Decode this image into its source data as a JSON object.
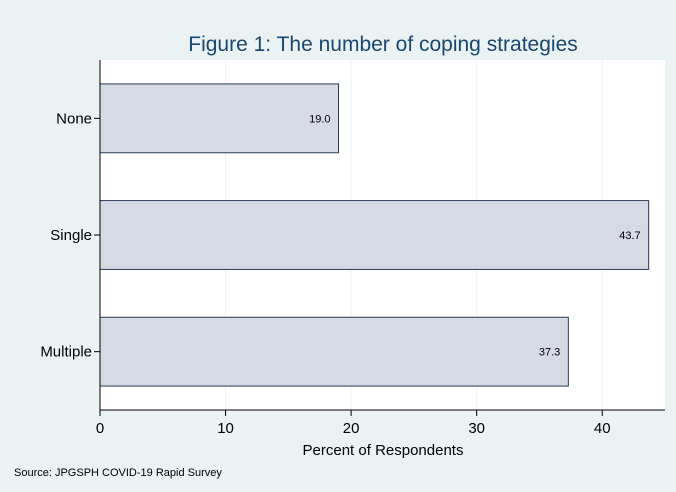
{
  "chart_data": {
    "type": "bar",
    "orientation": "horizontal",
    "title": "Figure 1: The number of coping strategies",
    "categories": [
      "None",
      "Single",
      "Multiple"
    ],
    "values": [
      19.0,
      43.7,
      37.3
    ],
    "data_labels": [
      "19.0",
      "43.7",
      "37.3"
    ],
    "xlabel": "Percent of Respondents",
    "ylabel": "",
    "xlim": [
      0,
      45
    ],
    "xticks": [
      0,
      10,
      20,
      30,
      40
    ],
    "grid": true,
    "bar_fill": "#d5dae4",
    "bar_edge": "#2b3a55",
    "background": "#eaf2f3",
    "plot_background": "#ffffff",
    "title_color": "#1a476f"
  },
  "note": "Source:  JPGSPH COVID-19 Rapid Survey"
}
